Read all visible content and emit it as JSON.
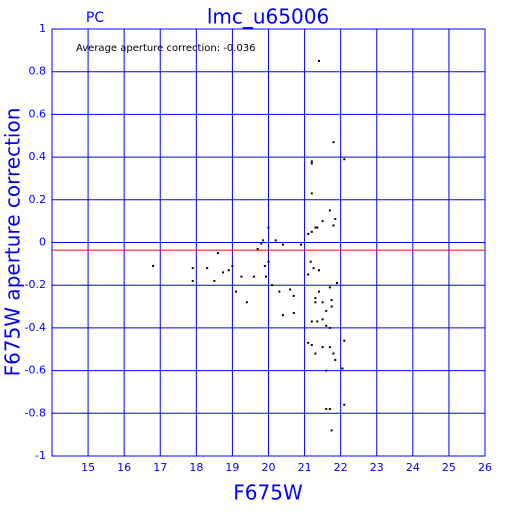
{
  "chart_data": {
    "type": "scatter",
    "corner_label": "PC",
    "title": "lmc_u65006",
    "annotation": "Average aperture correction: -0.036",
    "x_label": "F675W",
    "y_label": "F675W aperture correction",
    "xlim": [
      14,
      26
    ],
    "ylim": [
      -1,
      1
    ],
    "xticks": [
      15,
      16,
      17,
      18,
      19,
      20,
      21,
      22,
      23,
      24,
      25,
      26
    ],
    "yticks": [
      -1,
      -0.8,
      -0.6,
      -0.4,
      -0.2,
      0,
      0.2,
      0.4,
      0.6,
      0.8,
      1
    ],
    "grid": true,
    "grid_color": "#0000ff",
    "color": "#000000",
    "reference_line": {
      "value": -0.036,
      "color": "#ff0000"
    },
    "x": [
      16.8,
      17.9,
      17.9,
      18.3,
      18.5,
      18.6,
      18.74,
      18.9,
      19.0,
      19.1,
      19.25,
      19.4,
      19.6,
      19.7,
      19.8,
      19.85,
      19.9,
      19.93,
      20.0,
      20.0,
      20.1,
      20.2,
      20.3,
      20.4,
      20.4,
      20.6,
      20.7,
      20.7,
      20.9,
      21.4,
      21.8,
      22.1,
      21.2,
      21.2,
      21.2,
      21.3,
      21.35,
      21.5,
      21.7,
      21.8,
      21.85,
      21.1,
      21.2,
      21.17,
      21.25,
      21.4,
      21.1,
      21.3,
      21.4,
      21.3,
      21.5,
      21.6,
      21.2,
      21.35,
      21.5,
      21.6,
      21.7,
      21.1,
      21.2,
      21.3,
      21.5,
      21.7,
      21.8,
      21.85,
      22.05,
      22.1,
      21.6,
      21.7,
      21.75,
      21.75,
      21.9,
      21.6,
      21.7,
      21.75,
      22.1
    ],
    "values": [
      -0.11,
      -0.12,
      -0.18,
      -0.12,
      -0.18,
      -0.05,
      -0.14,
      -0.13,
      -0.11,
      -0.23,
      -0.16,
      -0.28,
      -0.16,
      -0.03,
      -0.005,
      0.01,
      -0.11,
      -0.16,
      0.07,
      -0.09,
      -0.2,
      0.01,
      -0.23,
      -0.01,
      -0.34,
      -0.22,
      -0.33,
      -0.25,
      -0.01,
      0.85,
      0.47,
      0.39,
      0.38,
      0.37,
      0.23,
      0.07,
      0.07,
      0.1,
      0.15,
      0.08,
      0.11,
      0.04,
      0.05,
      -0.09,
      -0.12,
      -0.13,
      -0.15,
      -0.26,
      -0.23,
      -0.28,
      -0.28,
      -0.32,
      -0.37,
      -0.37,
      -0.36,
      -0.39,
      -0.4,
      -0.47,
      -0.48,
      -0.52,
      -0.49,
      -0.49,
      -0.52,
      -0.55,
      -0.59,
      -0.46,
      -0.6,
      -0.21,
      -0.27,
      -0.3,
      -0.19,
      -0.78,
      -0.78,
      -0.88,
      -0.76
    ]
  }
}
